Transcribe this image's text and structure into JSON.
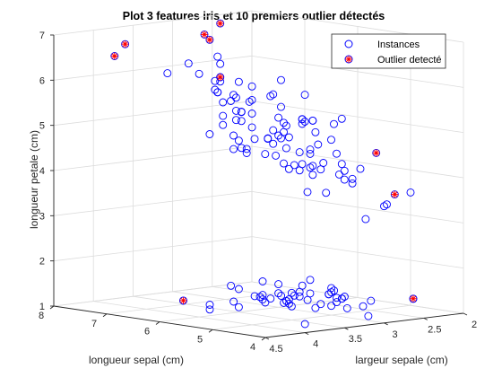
{
  "chart_data": {
    "type": "scatter",
    "title": "Plot 3 features iris et 10 premiers outlier détectés",
    "xlabel": "largeur sepale (cm)",
    "ylabel": "longueur sepal (cm)",
    "zlabel": "longueur petale (cm)",
    "xlim": [
      2,
      4.5
    ],
    "ylim": [
      4,
      8
    ],
    "zlim": [
      1,
      7
    ],
    "xticks": [
      "2",
      "2.5",
      "3",
      "3.5",
      "4",
      "4.5"
    ],
    "yticks": [
      "4",
      "5",
      "6",
      "7",
      "8"
    ],
    "zticks": [
      "1",
      "2",
      "3",
      "4",
      "5",
      "6",
      "7"
    ],
    "grid": true,
    "legend_position": "top-right",
    "colors": {
      "instances": "#0000ff",
      "outlier": "#ff0000"
    },
    "series": [
      {
        "name": "Instances",
        "marker": "circle",
        "points": [
          [
            3.5,
            5.1,
            1.4
          ],
          [
            3.0,
            4.9,
            1.4
          ],
          [
            3.2,
            4.7,
            1.3
          ],
          [
            3.1,
            4.6,
            1.5
          ],
          [
            3.6,
            5.0,
            1.4
          ],
          [
            3.9,
            5.4,
            1.7
          ],
          [
            3.4,
            4.6,
            1.4
          ],
          [
            3.4,
            5.0,
            1.5
          ],
          [
            2.9,
            4.4,
            1.4
          ],
          [
            3.1,
            4.9,
            1.5
          ],
          [
            3.7,
            5.4,
            1.5
          ],
          [
            3.4,
            4.8,
            1.6
          ],
          [
            3.0,
            4.8,
            1.4
          ],
          [
            3.0,
            4.3,
            1.1
          ],
          [
            4.0,
            5.8,
            1.2
          ],
          [
            4.4,
            5.7,
            1.5
          ],
          [
            3.9,
            5.4,
            1.3
          ],
          [
            3.5,
            5.1,
            1.4
          ],
          [
            3.8,
            5.7,
            1.7
          ],
          [
            3.8,
            5.1,
            1.5
          ],
          [
            3.4,
            5.4,
            1.7
          ],
          [
            3.7,
            5.1,
            1.5
          ],
          [
            3.6,
            4.6,
            1.0
          ],
          [
            3.3,
            5.1,
            1.7
          ],
          [
            3.4,
            4.8,
            1.9
          ],
          [
            3.0,
            5.0,
            1.6
          ],
          [
            3.4,
            5.0,
            1.6
          ],
          [
            3.5,
            5.2,
            1.5
          ],
          [
            3.4,
            5.2,
            1.4
          ],
          [
            3.2,
            4.7,
            1.6
          ],
          [
            3.1,
            4.8,
            1.6
          ],
          [
            3.4,
            5.4,
            1.5
          ],
          [
            4.1,
            5.2,
            1.5
          ],
          [
            4.2,
            5.5,
            1.4
          ],
          [
            3.1,
            4.9,
            1.5
          ],
          [
            3.2,
            5.0,
            1.2
          ],
          [
            3.5,
            5.5,
            1.3
          ],
          [
            3.6,
            4.9,
            1.4
          ],
          [
            3.0,
            4.4,
            1.3
          ],
          [
            3.4,
            5.1,
            1.5
          ],
          [
            3.5,
            5.0,
            1.3
          ],
          [
            2.3,
            4.5,
            1.3
          ],
          [
            3.2,
            4.4,
            1.3
          ],
          [
            3.5,
            5.0,
            1.6
          ],
          [
            3.8,
            5.1,
            1.9
          ],
          [
            3.0,
            4.8,
            1.4
          ],
          [
            3.8,
            5.1,
            1.6
          ],
          [
            3.2,
            4.6,
            1.4
          ],
          [
            3.7,
            5.3,
            1.5
          ],
          [
            3.3,
            5.0,
            1.4
          ],
          [
            3.2,
            7.0,
            4.7
          ],
          [
            3.2,
            6.4,
            4.5
          ],
          [
            3.1,
            6.9,
            4.9
          ],
          [
            2.3,
            5.5,
            4.0
          ],
          [
            2.8,
            6.5,
            4.6
          ],
          [
            2.8,
            5.7,
            4.5
          ],
          [
            3.3,
            6.3,
            4.7
          ],
          [
            2.4,
            4.9,
            3.3
          ],
          [
            2.9,
            6.6,
            4.6
          ],
          [
            2.7,
            5.2,
            3.9
          ],
          [
            2.0,
            5.0,
            3.5
          ],
          [
            3.0,
            5.9,
            4.2
          ],
          [
            2.2,
            6.0,
            4.0
          ],
          [
            2.9,
            6.1,
            4.7
          ],
          [
            2.9,
            5.6,
            3.6
          ],
          [
            3.1,
            6.7,
            4.4
          ],
          [
            3.0,
            5.6,
            4.5
          ],
          [
            2.7,
            5.8,
            4.1
          ],
          [
            2.2,
            6.2,
            4.5
          ],
          [
            2.5,
            5.6,
            3.9
          ],
          [
            3.2,
            5.9,
            4.8
          ],
          [
            2.8,
            6.1,
            4.0
          ],
          [
            2.5,
            6.3,
            4.9
          ],
          [
            2.8,
            6.1,
            4.7
          ],
          [
            2.9,
            6.4,
            4.3
          ],
          [
            3.0,
            6.6,
            4.4
          ],
          [
            2.8,
            6.8,
            4.8
          ],
          [
            3.0,
            6.7,
            5.0
          ],
          [
            2.9,
            6.0,
            4.5
          ],
          [
            2.6,
            5.7,
            3.5
          ],
          [
            2.4,
            5.5,
            3.8
          ],
          [
            2.4,
            5.5,
            3.7
          ],
          [
            2.7,
            5.8,
            3.9
          ],
          [
            2.7,
            6.0,
            5.1
          ],
          [
            3.0,
            5.4,
            4.5
          ],
          [
            3.4,
            6.0,
            4.5
          ],
          [
            3.1,
            6.7,
            4.7
          ],
          [
            2.3,
            6.3,
            4.4
          ],
          [
            3.0,
            5.6,
            4.1
          ],
          [
            2.5,
            5.5,
            4.0
          ],
          [
            2.6,
            5.5,
            4.4
          ],
          [
            3.0,
            6.1,
            4.6
          ],
          [
            2.6,
            5.8,
            4.0
          ],
          [
            2.3,
            5.0,
            3.3
          ],
          [
            2.7,
            5.6,
            4.2
          ],
          [
            3.0,
            5.7,
            4.2
          ],
          [
            2.9,
            5.7,
            4.2
          ],
          [
            2.9,
            6.2,
            4.3
          ],
          [
            2.5,
            5.1,
            3.0
          ],
          [
            2.8,
            5.7,
            4.1
          ],
          [
            3.3,
            6.3,
            6.0
          ],
          [
            2.7,
            5.8,
            5.1
          ],
          [
            3.0,
            7.1,
            5.9
          ],
          [
            2.9,
            6.3,
            5.6
          ],
          [
            3.0,
            6.5,
            5.8
          ],
          [
            2.9,
            7.3,
            6.3
          ],
          [
            2.5,
            6.7,
            5.8
          ],
          [
            3.6,
            7.2,
            6.1
          ],
          [
            3.2,
            6.5,
            5.1
          ],
          [
            2.7,
            6.4,
            5.3
          ],
          [
            3.0,
            6.8,
            5.5
          ],
          [
            2.5,
            5.7,
            5.0
          ],
          [
            2.8,
            5.8,
            5.1
          ],
          [
            3.2,
            6.4,
            5.3
          ],
          [
            3.0,
            6.5,
            5.5
          ],
          [
            2.2,
            6.0,
            5.0
          ],
          [
            3.2,
            6.9,
            5.7
          ],
          [
            2.8,
            5.6,
            4.9
          ],
          [
            2.7,
            6.3,
            4.9
          ],
          [
            3.3,
            6.7,
            5.7
          ],
          [
            3.2,
            7.2,
            6.0
          ],
          [
            2.8,
            6.2,
            4.8
          ],
          [
            3.0,
            6.1,
            4.9
          ],
          [
            2.8,
            6.4,
            5.6
          ],
          [
            3.0,
            7.2,
            5.8
          ],
          [
            2.8,
            7.4,
            6.1
          ],
          [
            2.8,
            6.3,
            5.1
          ],
          [
            2.6,
            6.1,
            5.6
          ],
          [
            3.0,
            7.7,
            6.1
          ],
          [
            3.4,
            6.3,
            5.6
          ],
          [
            3.1,
            6.4,
            5.5
          ],
          [
            3.0,
            6.0,
            4.8
          ],
          [
            3.1,
            6.9,
            5.4
          ],
          [
            3.1,
            6.7,
            5.6
          ],
          [
            3.1,
            6.9,
            5.1
          ],
          [
            2.7,
            5.8,
            5.1
          ],
          [
            3.2,
            6.8,
            5.9
          ],
          [
            3.3,
            6.7,
            5.7
          ],
          [
            3.0,
            6.7,
            5.2
          ],
          [
            2.5,
            6.3,
            5.0
          ],
          [
            3.0,
            6.5,
            5.2
          ],
          [
            3.4,
            6.2,
            5.4
          ],
          [
            3.0,
            5.9,
            5.1
          ]
        ]
      },
      {
        "name": "Outlier detecté",
        "marker": "circle-star",
        "points": [
          [
            2.6,
            7.7,
            6.9
          ],
          [
            3.8,
            7.7,
            6.7
          ],
          [
            2.8,
            7.7,
            6.7
          ],
          [
            3.8,
            7.9,
            6.4
          ],
          [
            2.8,
            7.6,
            6.6
          ],
          [
            2.5,
            4.9,
            4.5
          ],
          [
            2.2,
            5.0,
            3.5
          ],
          [
            2.3,
            4.5,
            1.3
          ],
          [
            4.4,
            5.7,
            1.5
          ],
          [
            3.0,
            7.1,
            5.9
          ]
        ]
      }
    ]
  }
}
